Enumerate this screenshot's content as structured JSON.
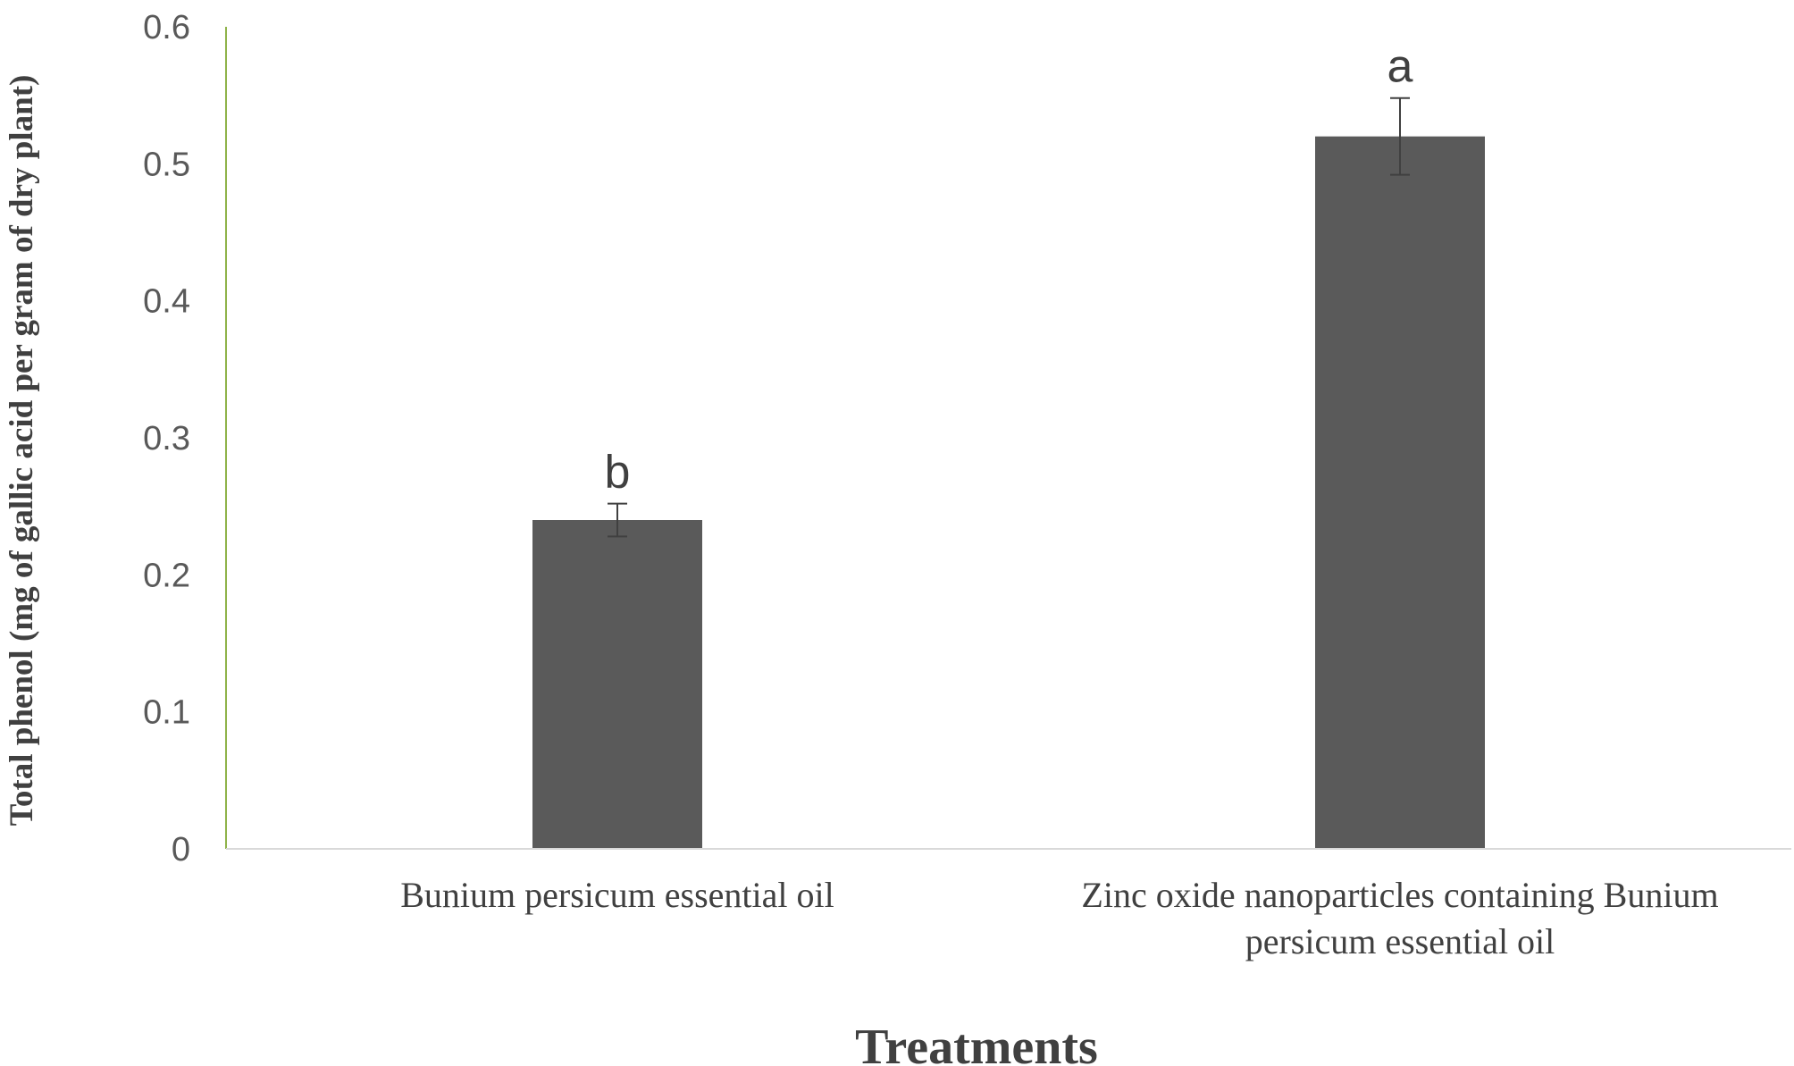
{
  "chart_data": {
    "type": "bar",
    "categories": [
      [
        "Bunium persicum essential oil"
      ],
      [
        "Zinc oxide nanoparticles containing Bunium",
        "persicum essential oil"
      ]
    ],
    "values": [
      0.24,
      0.52
    ],
    "error": [
      0.012,
      0.028
    ],
    "significance_letters": [
      "b",
      "a"
    ],
    "xlabel": "Treatments",
    "ylabel": "Total phenol (mg of gallic acid per gram of dry plant)",
    "ylim": [
      0,
      0.6
    ],
    "yticks": [
      0,
      0.1,
      0.2,
      0.3,
      0.4,
      0.5,
      0.6
    ],
    "ytick_labels": [
      "0",
      "0.1",
      "0.2",
      "0.3",
      "0.4",
      "0.5",
      "0.6"
    ],
    "grid": false,
    "legend": "none",
    "colors": {
      "bar": "#5a5a5a",
      "y_axis_line": "#8fb34a",
      "x_axis_line": "#d9d9d9",
      "error_bar": "#404040"
    }
  }
}
